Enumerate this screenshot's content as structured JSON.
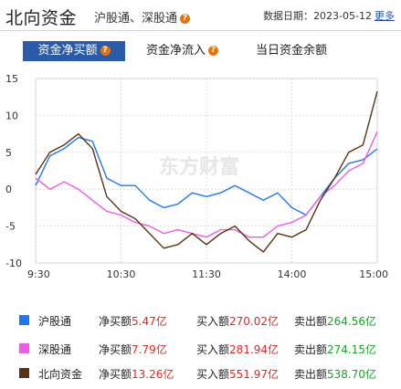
{
  "header": {
    "title": "北向资金",
    "subtitle": "沪股通、深股通",
    "help_glyph": "?",
    "date_label": "数据日期：",
    "date_value": "2023-05-12",
    "more_label": "更多"
  },
  "tabs": [
    {
      "label": "资金净买额",
      "active": true,
      "badge": "?"
    },
    {
      "label": "资金净流入",
      "active": false,
      "badge": "?"
    },
    {
      "label": "当日资金余额",
      "active": false
    }
  ],
  "watermark": "东方财富",
  "chart_data": {
    "type": "line",
    "ylim": [
      -10,
      15
    ],
    "y_ticks": [
      15,
      10,
      5,
      0,
      -5,
      -10
    ],
    "x_ticks": [
      "9:30",
      "10:30",
      "11:30",
      "14:00",
      "15:00"
    ],
    "x": [
      "9:30",
      "9:40",
      "9:50",
      "10:00",
      "10:10",
      "10:20",
      "10:30",
      "10:40",
      "10:50",
      "11:00",
      "11:10",
      "11:20",
      "11:30",
      "13:10",
      "13:20",
      "13:30",
      "13:40",
      "13:50",
      "14:00",
      "14:10",
      "14:20",
      "14:30",
      "14:40",
      "14:50",
      "15:00"
    ],
    "series": [
      {
        "name": "沪股通",
        "color": "#1e78f0",
        "values": [
          0.5,
          4.5,
          5.5,
          7.0,
          6.5,
          1.5,
          0.5,
          0.5,
          -1.5,
          -2.5,
          -2.0,
          -0.5,
          -1.0,
          -0.5,
          0.5,
          -0.5,
          -1.5,
          -0.5,
          -2.5,
          -3.5,
          -1.0,
          1.5,
          3.5,
          4.0,
          5.47
        ]
      },
      {
        "name": "深股通",
        "color": "#f05ae6",
        "values": [
          1.5,
          0.0,
          1.0,
          0.0,
          -1.5,
          -3.0,
          -3.5,
          -4.5,
          -5.0,
          -6.0,
          -5.5,
          -6.0,
          -6.5,
          -5.5,
          -5.5,
          -6.5,
          -6.5,
          -5.0,
          -4.5,
          -3.5,
          -1.0,
          0.5,
          2.5,
          3.5,
          7.79
        ]
      },
      {
        "name": "北向资金",
        "color": "#5a3214",
        "values": [
          2.0,
          5.0,
          6.0,
          7.5,
          5.5,
          -1.0,
          -3.0,
          -4.0,
          -6.0,
          -8.0,
          -7.5,
          -6.0,
          -7.5,
          -6.0,
          -5.0,
          -7.0,
          -8.5,
          -6.0,
          -6.5,
          -5.5,
          -1.5,
          1.5,
          5.0,
          6.0,
          13.26
        ]
      }
    ]
  },
  "legend": [
    {
      "name": "沪股通",
      "color": "#1e78f0",
      "net_label": "净买额",
      "net_value": "5.47亿",
      "buy_label": "买入额",
      "buy_value": "270.02亿",
      "sell_label": "卖出额",
      "sell_value": "264.56亿"
    },
    {
      "name": "深股通",
      "color": "#f05ae6",
      "net_label": "净买额",
      "net_value": "7.79亿",
      "buy_label": "买入额",
      "buy_value": "281.94亿",
      "sell_label": "卖出额",
      "sell_value": "274.15亿"
    },
    {
      "name": "北向资金",
      "color": "#5a3214",
      "net_label": "净买额",
      "net_value": "13.26亿",
      "buy_label": "买入额",
      "buy_value": "551.97亿",
      "sell_label": "卖出额",
      "sell_value": "538.70亿"
    }
  ]
}
